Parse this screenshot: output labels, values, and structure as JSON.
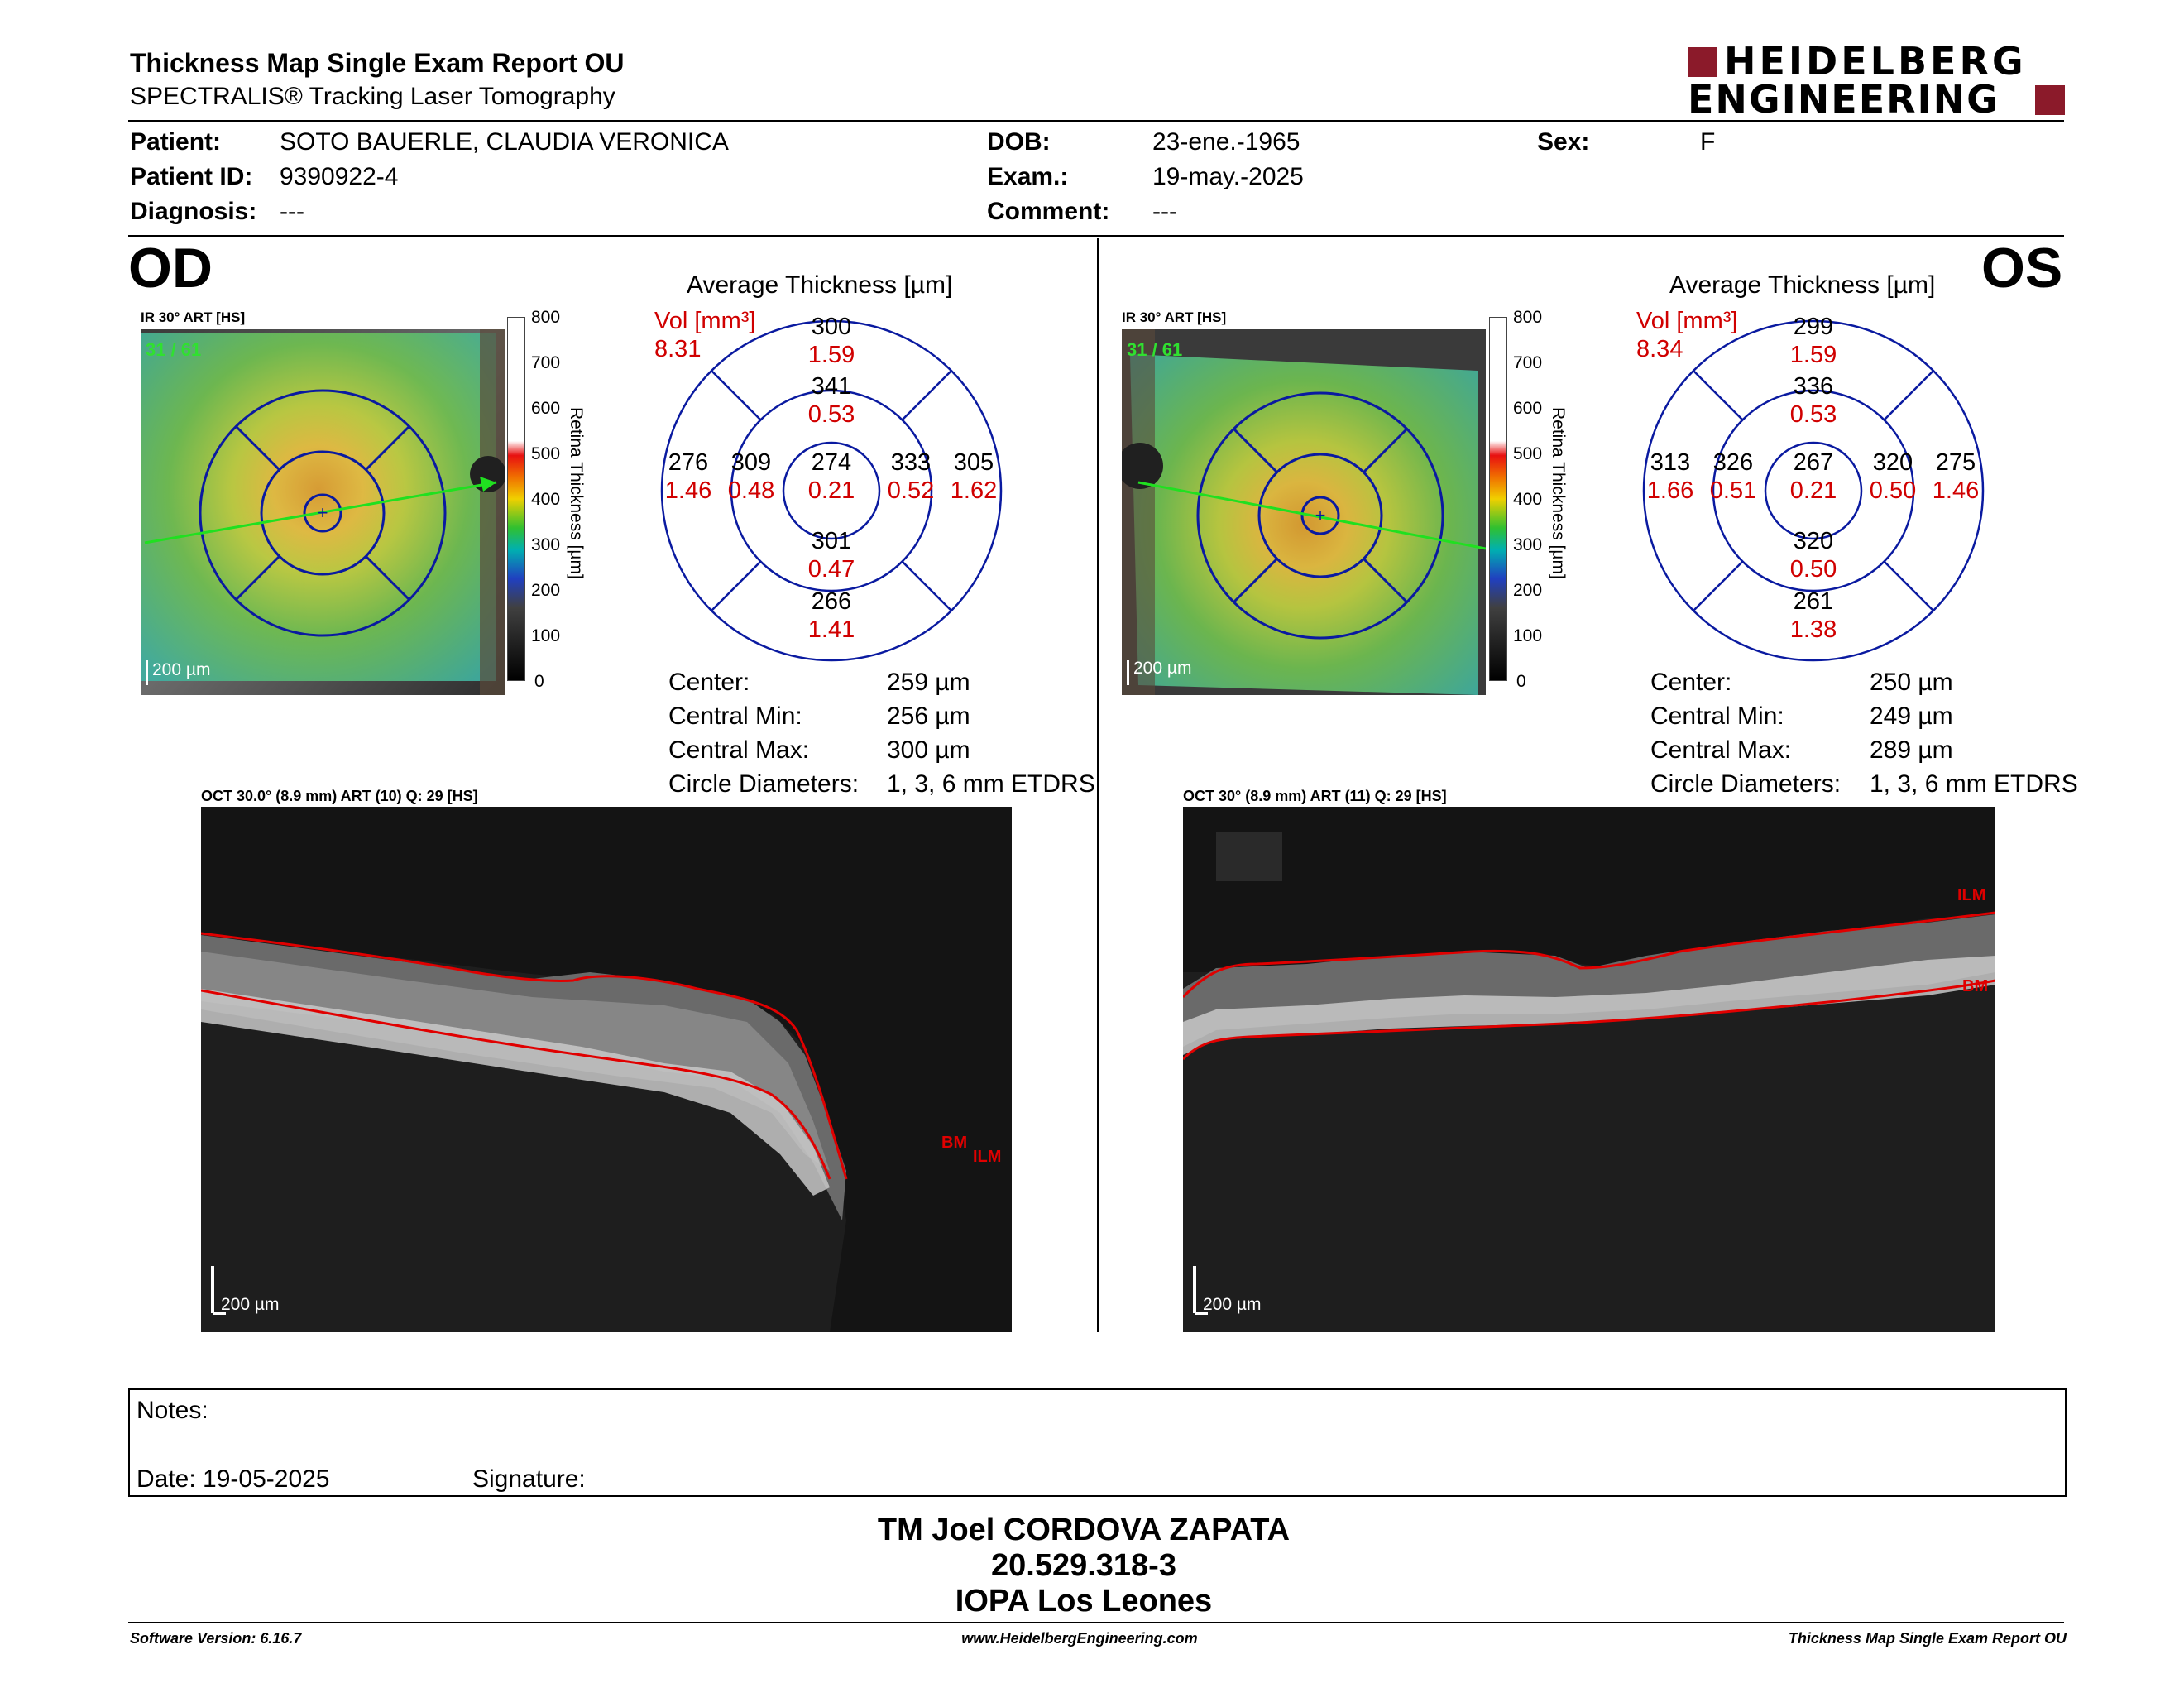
{
  "report": {
    "title": "Thickness Map Single Exam Report OU",
    "subtitle": "SPECTRALIS® Tracking Laser Tomography",
    "brand_top": "HEIDELBERG",
    "brand_bottom": "ENGINEERING",
    "brand_color": "#8b1a2a"
  },
  "patient": {
    "patient_label": "Patient:",
    "patient_value": "SOTO BAUERLE, CLAUDIA VERONICA",
    "id_label": "Patient ID:",
    "id_value": "9390922-4",
    "diagnosis_label": "Diagnosis:",
    "diagnosis_value": "---",
    "dob_label": "DOB:",
    "dob_value": "23-ene.-1965",
    "exam_label": "Exam.:",
    "exam_value": "19-may.-2025",
    "comment_label": "Comment:",
    "comment_value": "---",
    "sex_label": "Sex:",
    "sex_value": "F"
  },
  "od": {
    "eye": "OD",
    "ir_label": "IR 30° ART [HS]",
    "frames": "31 / 61",
    "scale": "200 µm",
    "avg_title": "Average Thickness [µm]",
    "vol_label": "Vol [mm³]",
    "vol_total": "8.31",
    "etdrs": {
      "outer_sup": "300",
      "outer_sup_vol": "1.59",
      "inner_sup": "341",
      "inner_sup_vol": "0.53",
      "outer_temp": "276",
      "outer_temp_vol": "1.46",
      "inner_temp": "309",
      "inner_temp_vol": "0.48",
      "center": "274",
      "center_vol": "0.21",
      "inner_nas": "333",
      "inner_nas_vol": "0.52",
      "outer_nas": "305",
      "outer_nas_vol": "1.62",
      "inner_inf": "301",
      "inner_inf_vol": "0.47",
      "outer_inf": "266",
      "outer_inf_vol": "1.41"
    },
    "stats": {
      "center_label": "Center:",
      "center_value": "259 µm",
      "min_label": "Central Min:",
      "min_value": "256 µm",
      "max_label": "Central Max:",
      "max_value": "300 µm",
      "diam_label": "Circle Diameters:",
      "diam_value": "1, 3, 6 mm ETDRS"
    },
    "oct_label": "OCT 30.0° (8.9 mm) ART (10) Q: 29 [HS]",
    "oct_scale": "200 µm",
    "bm": "BM",
    "ilm": "ILM"
  },
  "os": {
    "eye": "OS",
    "ir_label": "IR 30° ART [HS]",
    "frames": "31 / 61",
    "scale": "200 µm",
    "avg_title": "Average Thickness [µm]",
    "vol_label": "Vol [mm³]",
    "vol_total": "8.34",
    "etdrs": {
      "outer_sup": "299",
      "outer_sup_vol": "1.59",
      "inner_sup": "336",
      "inner_sup_vol": "0.53",
      "outer_temp": "313",
      "outer_temp_vol": "1.66",
      "inner_temp": "326",
      "inner_temp_vol": "0.51",
      "center": "267",
      "center_vol": "0.21",
      "inner_nas": "320",
      "inner_nas_vol": "0.50",
      "outer_nas": "275",
      "outer_nas_vol": "1.46",
      "inner_inf": "320",
      "inner_inf_vol": "0.50",
      "outer_inf": "261",
      "outer_inf_vol": "1.38"
    },
    "stats": {
      "center_label": "Center:",
      "center_value": "250 µm",
      "min_label": "Central Min:",
      "min_value": "249 µm",
      "max_label": "Central Max:",
      "max_value": "289 µm",
      "diam_label": "Circle Diameters:",
      "diam_value": "1, 3, 6 mm ETDRS"
    },
    "oct_label": "OCT 30° (8.9 mm) ART (11) Q: 29 [HS]",
    "oct_scale": "200 µm",
    "bm": "BM",
    "ilm": "ILM"
  },
  "colorbar": {
    "ticks": [
      "800",
      "700",
      "600",
      "500",
      "400",
      "300",
      "200",
      "100",
      "0"
    ],
    "title": "Retina Thickness [µm]"
  },
  "notes": {
    "notes_label": "Notes:",
    "date_label": "Date: 19-05-2025",
    "signature_label": "Signature:"
  },
  "signer": {
    "name": "TM Joel CORDOVA ZAPATA",
    "rut": "20.529.318-3",
    "place": "IOPA Los Leones"
  },
  "footer": {
    "version": "Software Version: 6.16.7",
    "website": "www.HeidelbergEngineering.com",
    "report_name": "Thickness Map Single Exam Report OU"
  }
}
